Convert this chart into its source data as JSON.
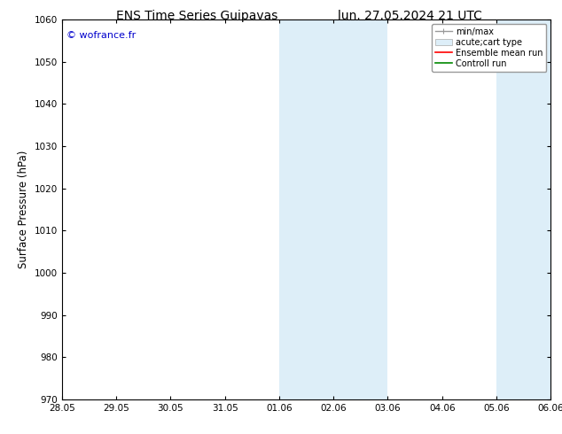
{
  "title_left": "ENS Time Series Guipavas",
  "title_right": "lun. 27.05.2024 21 UTC",
  "ylabel": "Surface Pressure (hPa)",
  "ylim": [
    970,
    1060
  ],
  "yticks": [
    970,
    980,
    990,
    1000,
    1010,
    1020,
    1030,
    1040,
    1050,
    1060
  ],
  "xtick_labels": [
    "28.05",
    "29.05",
    "30.05",
    "31.05",
    "01.06",
    "02.06",
    "03.06",
    "04.06",
    "05.06",
    "06.06"
  ],
  "xtick_positions": [
    0,
    1,
    2,
    3,
    4,
    5,
    6,
    7,
    8,
    9
  ],
  "xlim": [
    0,
    9
  ],
  "shaded_regions": [
    {
      "xmin": 4,
      "xmax": 5,
      "color": "#ddeef8"
    },
    {
      "xmin": 5,
      "xmax": 6,
      "color": "#ddeef8"
    },
    {
      "xmin": 8,
      "xmax": 9,
      "color": "#ddeef8"
    }
  ],
  "watermark": "© wofrance.fr",
  "watermark_color": "#0000cc",
  "legend_entries": [
    {
      "label": "min/max",
      "color": "#999999"
    },
    {
      "label": "acute;cart type",
      "color": "#ddeef8"
    },
    {
      "label": "Ensemble mean run",
      "color": "#ff0000"
    },
    {
      "label": "Controll run",
      "color": "#008800"
    }
  ],
  "background_color": "#ffffff",
  "title_fontsize": 10,
  "tick_fontsize": 7.5,
  "ylabel_fontsize": 8.5,
  "legend_fontsize": 7,
  "watermark_fontsize": 8
}
